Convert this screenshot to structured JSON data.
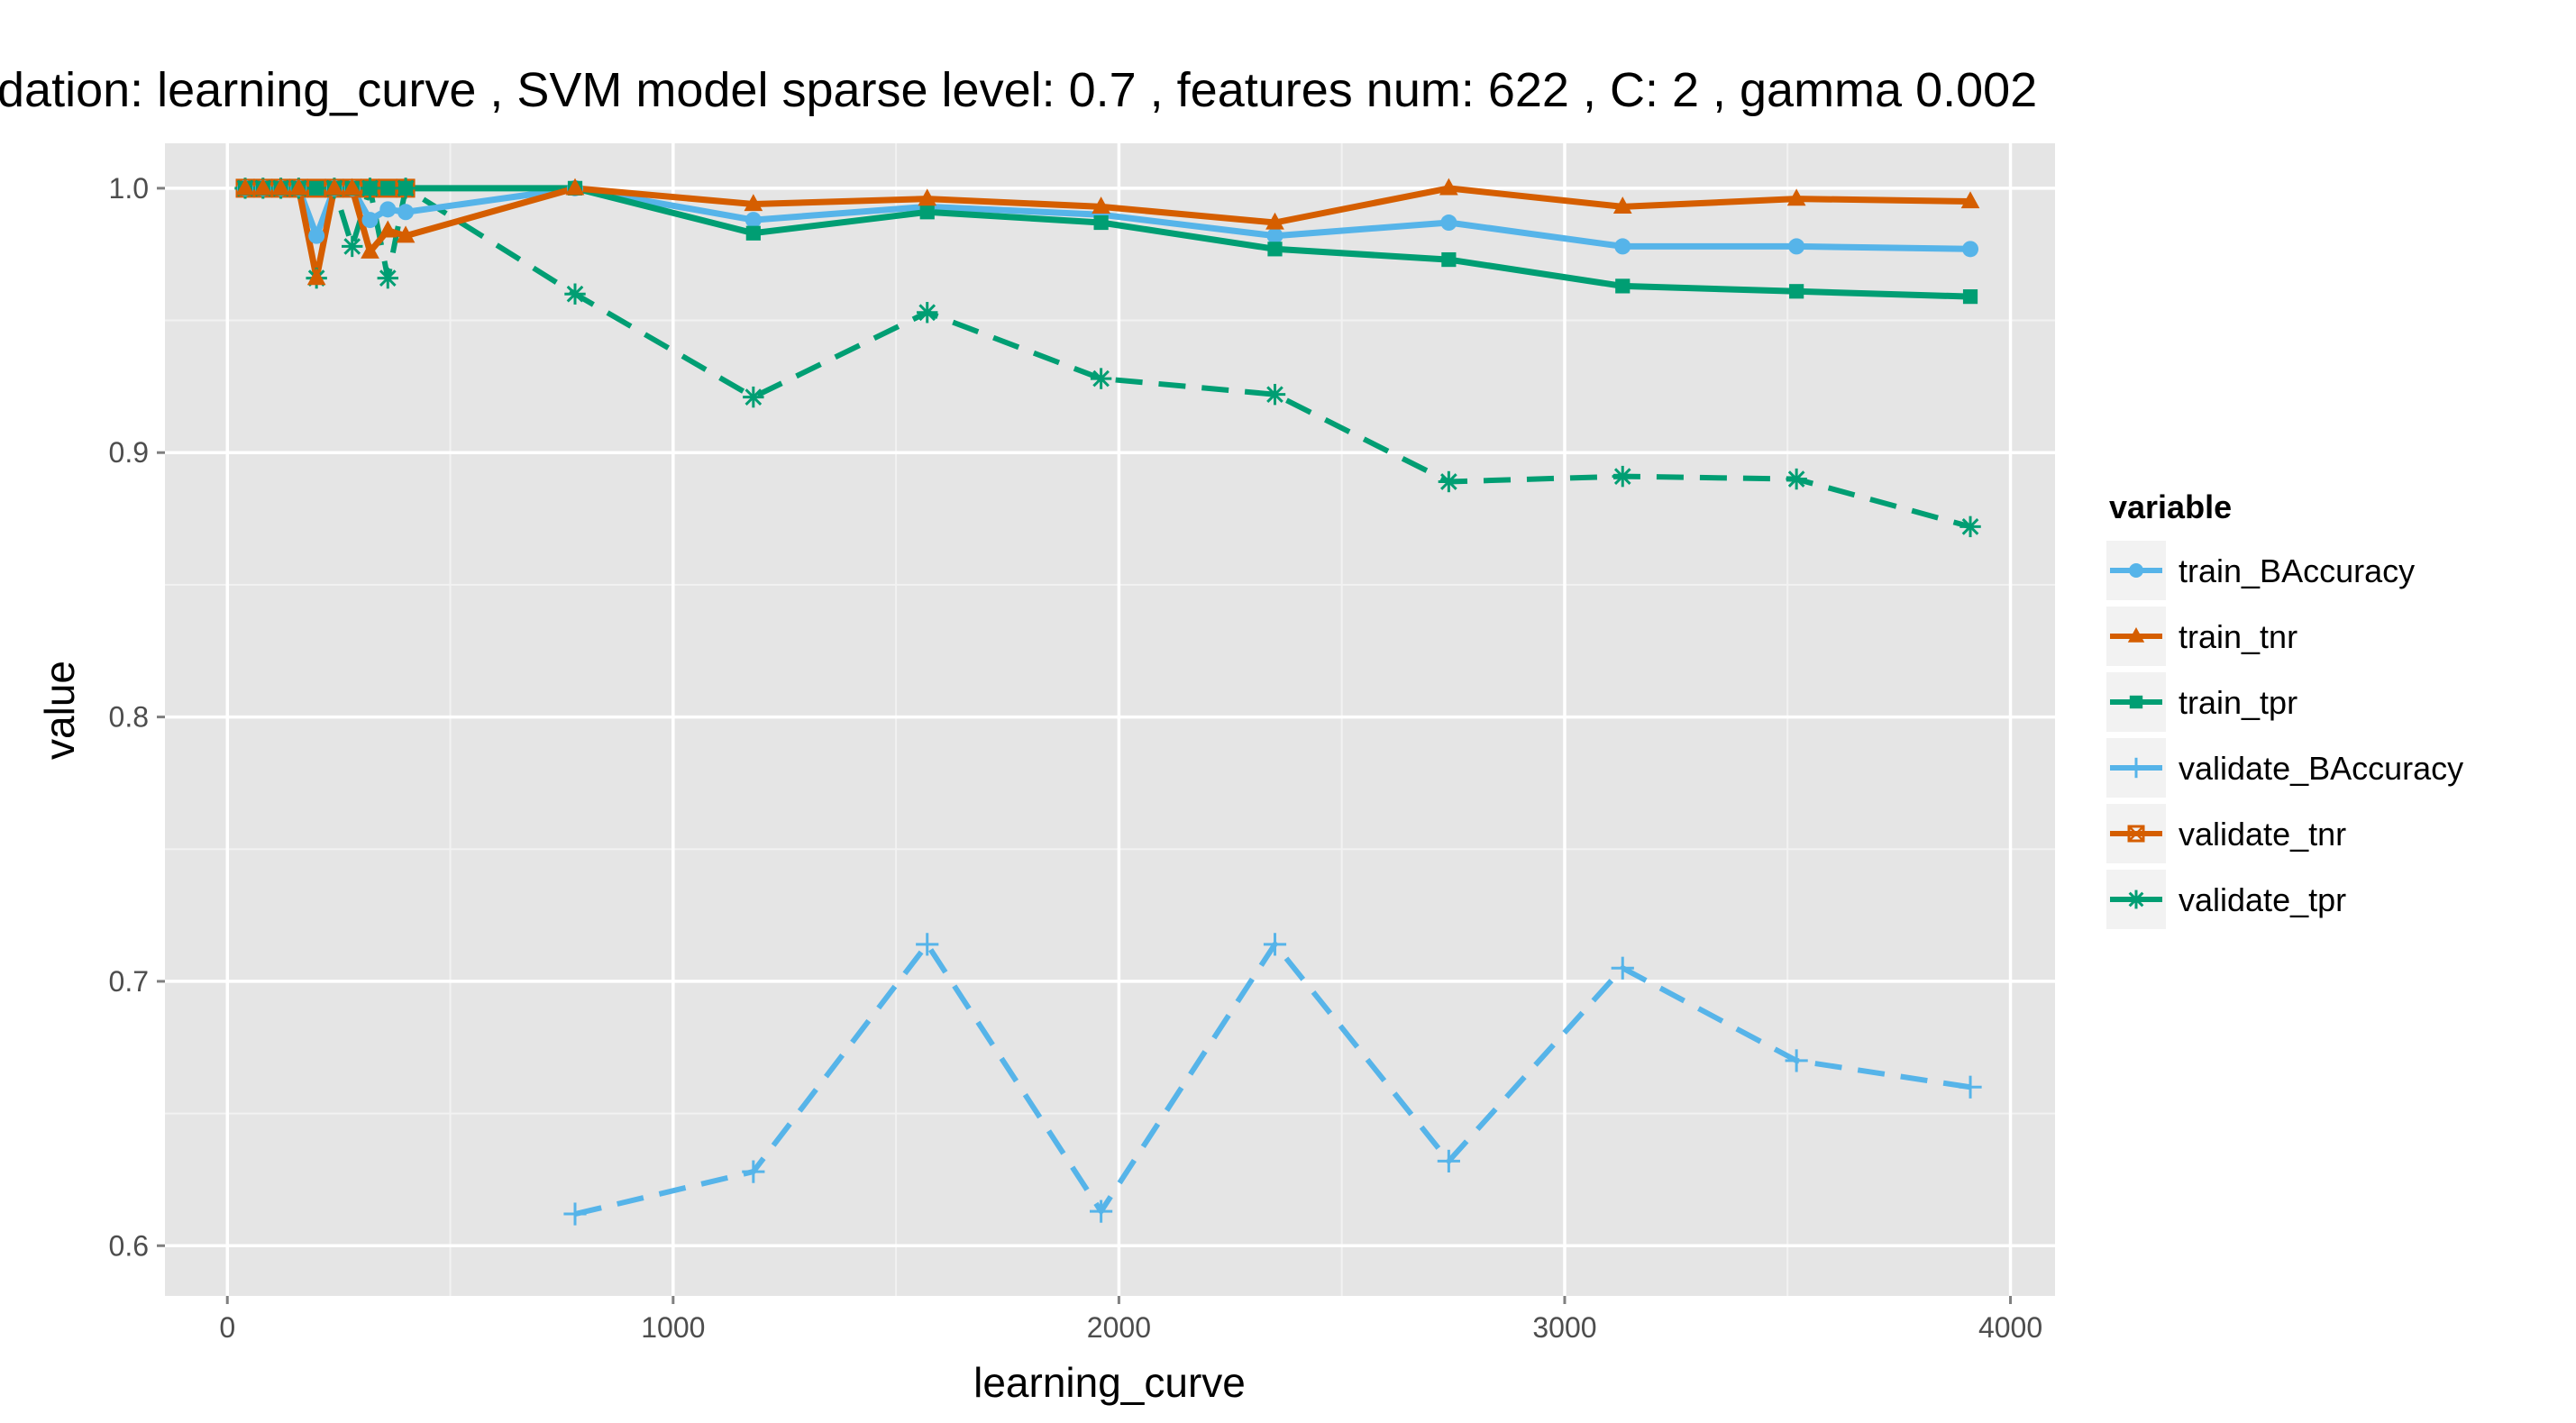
{
  "chart_data": {
    "type": "line",
    "title": "dation:  learning_curve ,  SVM model sparse level: 0.7 , features num: 622 , C:  2 , gamma 0.002",
    "xlabel": "learning_curve",
    "ylabel": "value",
    "xlim": [
      -140,
      4100
    ],
    "ylim": [
      0.581,
      1.017
    ],
    "x_ticks": [
      0,
      1000,
      2000,
      3000,
      4000
    ],
    "x_tick_labels": [
      "0",
      "1000",
      "2000",
      "3000",
      "4000"
    ],
    "y_ticks": [
      0.6,
      0.7,
      0.8,
      0.9,
      1.0
    ],
    "y_tick_labels": [
      "0.6",
      "0.7",
      "0.8",
      "0.9",
      "1.0"
    ],
    "grid": true,
    "legend": {
      "title": "variable",
      "position": "right"
    },
    "series": [
      {
        "name": "train_BAccuracy",
        "color": "#56B4E9",
        "dash": "solid",
        "marker": "circle",
        "x": [
          40,
          80,
          120,
          160,
          200,
          240,
          280,
          320,
          360,
          400,
          780,
          1180,
          1570,
          1960,
          2350,
          2740,
          3130,
          3520,
          3910
        ],
        "y": [
          1.0,
          1.0,
          1.0,
          1.0,
          0.982,
          1.0,
          1.0,
          0.988,
          0.992,
          0.991,
          1.0,
          0.988,
          0.993,
          0.99,
          0.982,
          0.987,
          0.978,
          0.978,
          0.977
        ]
      },
      {
        "name": "train_tnr",
        "color": "#D55E00",
        "dash": "solid",
        "marker": "triangle",
        "x": [
          40,
          80,
          120,
          160,
          200,
          240,
          280,
          320,
          360,
          400,
          780,
          1180,
          1570,
          1960,
          2350,
          2740,
          3130,
          3520,
          3910
        ],
        "y": [
          1.0,
          1.0,
          1.0,
          1.0,
          0.966,
          1.0,
          1.0,
          0.976,
          0.984,
          0.982,
          1.0,
          0.994,
          0.996,
          0.993,
          0.987,
          1.0,
          0.993,
          0.996,
          0.995
        ]
      },
      {
        "name": "train_tpr",
        "color": "#009E73",
        "dash": "solid",
        "marker": "square",
        "x": [
          40,
          80,
          120,
          160,
          200,
          240,
          280,
          320,
          360,
          400,
          780,
          1180,
          1570,
          1960,
          2350,
          2740,
          3130,
          3520,
          3910
        ],
        "y": [
          1.0,
          1.0,
          1.0,
          1.0,
          1.0,
          1.0,
          1.0,
          1.0,
          1.0,
          1.0,
          1.0,
          0.983,
          0.991,
          0.987,
          0.977,
          0.973,
          0.963,
          0.961,
          0.959
        ]
      },
      {
        "name": "validate_BAccuracy",
        "color": "#56B4E9",
        "dash": "dashed",
        "marker": "plus",
        "x": [
          780,
          1180,
          1570,
          1960,
          2350,
          2740,
          3130,
          3520,
          3910
        ],
        "y": [
          0.612,
          0.628,
          0.714,
          0.613,
          0.714,
          0.632,
          0.705,
          0.67,
          0.66
        ]
      },
      {
        "name": "validate_tnr",
        "color": "#D55E00",
        "dash": "dashed",
        "marker": "boxed-x",
        "x": [
          40,
          80,
          120,
          160,
          200,
          240,
          280,
          320,
          360,
          400
        ],
        "y": [
          1.0,
          1.0,
          1.0,
          1.0,
          1.0,
          1.0,
          1.0,
          1.0,
          1.0,
          1.0
        ]
      },
      {
        "name": "validate_tpr",
        "color": "#009E73",
        "dash": "dashed",
        "marker": "asterisk",
        "x": [
          40,
          80,
          120,
          160,
          200,
          240,
          280,
          320,
          360,
          400,
          780,
          1180,
          1570,
          1960,
          2350,
          2740,
          3130,
          3520,
          3910
        ],
        "y": [
          1.0,
          1.0,
          1.0,
          1.0,
          0.966,
          1.0,
          0.978,
          1.0,
          0.966,
          1.0,
          0.96,
          0.921,
          0.953,
          0.928,
          0.922,
          0.889,
          0.891,
          0.89,
          0.872
        ]
      }
    ]
  }
}
